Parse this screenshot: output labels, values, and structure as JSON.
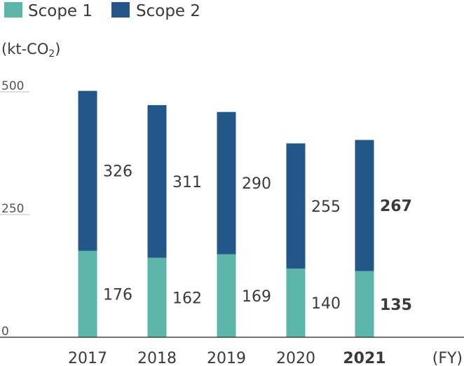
{
  "colors": {
    "scope1": "#5bb5a8",
    "scope2": "#23578a",
    "axis": "#555555",
    "grid": "#bdbdbd"
  },
  "legend": {
    "scope1_label": "Scope 1",
    "scope2_label": "Scope 2"
  },
  "unit_label_main": "(kt-CO",
  "unit_label_sub": "2",
  "unit_label_close": ")",
  "chart_data": {
    "type": "bar",
    "stacked": true,
    "categories": [
      "2017",
      "2018",
      "2019",
      "2020",
      "2021"
    ],
    "highlight_category": "2021",
    "series": [
      {
        "name": "Scope 1",
        "values": [
          176,
          162,
          169,
          140,
          135
        ]
      },
      {
        "name": "Scope 2",
        "values": [
          326,
          311,
          290,
          255,
          267
        ]
      }
    ],
    "xlabel": "(FY)",
    "ylabel": "(kt-CO2)",
    "yticks": [
      "500",
      "250",
      "0"
    ],
    "ylim": [
      0,
      500
    ],
    "grid": false,
    "legend_position": "top-left"
  }
}
